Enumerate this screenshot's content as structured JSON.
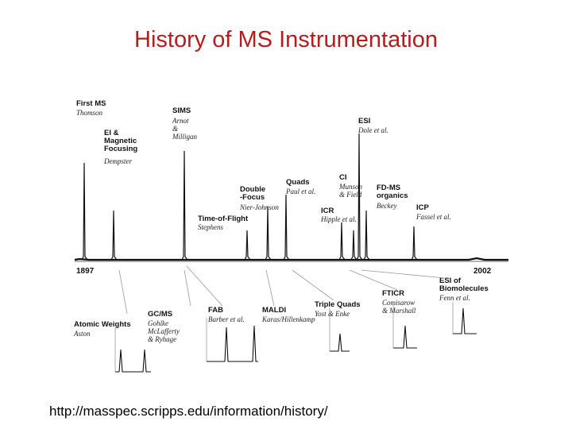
{
  "slide": {
    "title": "History of MS Instrumentation",
    "url": "http://masspec.scripps.edu/information/history/"
  },
  "timeline": {
    "start_year": "1897",
    "end_year": "2002",
    "events_above": [
      {
        "label": [
          "First MS"
        ],
        "credit": [
          "Thomson"
        ]
      },
      {
        "label": [
          "EI &",
          "Magnetic",
          "Focusing"
        ],
        "credit": [
          "Dempster"
        ]
      },
      {
        "label": [
          "SIMS"
        ],
        "credit": [
          "Arnot",
          "&",
          "Milligan"
        ]
      },
      {
        "label": [
          "Time-of-Flight"
        ],
        "credit": [
          "Stephens"
        ]
      },
      {
        "label": [
          "Double",
          "-Focus"
        ],
        "credit": [
          "Nier-Johnson"
        ]
      },
      {
        "label": [
          "Quads"
        ],
        "credit": [
          "Paul et al."
        ]
      },
      {
        "label": [
          "CI"
        ],
        "credit": [
          "Munson",
          "& Field"
        ]
      },
      {
        "label": [
          "ICR"
        ],
        "credit": [
          "Hipple et al."
        ]
      },
      {
        "label": [
          "ESI"
        ],
        "credit": [
          "Dole et al."
        ]
      },
      {
        "label": [
          "FD-MS",
          "organics"
        ],
        "credit": [
          "Beckey"
        ]
      },
      {
        "label": [
          "ICP"
        ],
        "credit": [
          "Fassel et al."
        ]
      }
    ],
    "events_below": [
      {
        "label": [
          "Atomic Weights"
        ],
        "credit": [
          "Aston"
        ]
      },
      {
        "label": [
          "GC/MS"
        ],
        "credit": [
          "Gohlke",
          "McLafferty",
          "& Ryhage"
        ]
      },
      {
        "label": [
          "FAB"
        ],
        "credit": [
          "Barber et al."
        ]
      },
      {
        "label": [
          "MALDI"
        ],
        "credit": [
          "Karas/Hillenkamp"
        ]
      },
      {
        "label": [
          "Triple Quads"
        ],
        "credit": [
          "Yost & Enke"
        ]
      },
      {
        "label": [
          "FTICR"
        ],
        "credit": [
          "Comisarow",
          "& Marshall"
        ]
      },
      {
        "label": [
          "ESI of",
          "Biomolecules"
        ],
        "credit": [
          "Fenn et al."
        ]
      }
    ]
  }
}
